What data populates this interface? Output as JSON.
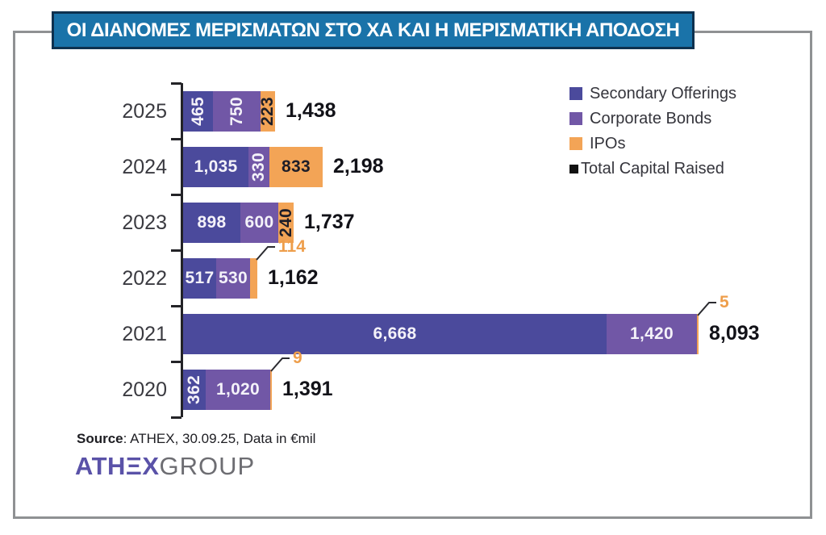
{
  "title_banner": {
    "text": "ΟΙ ΔΙΑΝΟΜΕΣ ΜΕΡΙΣΜΑΤΩΝ ΣΤΟ ΧΑ ΚΑΙ Η ΜΕΡΙΣΜΑΤΙΚΗ ΑΠΟΔΟΣΗ",
    "bg_color": "#1a73a9",
    "border_color": "#0d314f"
  },
  "legend": [
    {
      "label": "Secondary Offerings",
      "color": "#4b4a9c",
      "marker": "normal"
    },
    {
      "label": "Corporate Bonds",
      "color": "#7157a6",
      "marker": "normal"
    },
    {
      "label": "IPOs",
      "color": "#f3a456",
      "marker": "normal"
    },
    {
      "label": "Total Capital Raised",
      "color": "#111111",
      "marker": "small"
    }
  ],
  "chart_data": {
    "type": "bar",
    "orientation": "horizontal",
    "stacked": true,
    "title": "ΟΙ ΔΙΑΝΟΜΕΣ ΜΕΡΙΣΜΑΤΩΝ ΣΤΟ ΧΑ ΚΑΙ Η ΜΕΡΙΣΜΑΤΙΚΗ ΑΠΟΔΟΣΗ",
    "unit": "€mil",
    "xlim": [
      0,
      8500
    ],
    "grid": false,
    "legend_position": "top-right",
    "categories": [
      "2025",
      "2024",
      "2023",
      "2022",
      "2021",
      "2020"
    ],
    "series": [
      {
        "name": "Secondary Offerings",
        "color": "#4b4a9c",
        "values": [
          465,
          1035,
          898,
          517,
          6668,
          362
        ]
      },
      {
        "name": "Corporate Bonds",
        "color": "#7157a6",
        "values": [
          750,
          330,
          600,
          530,
          1420,
          1020
        ]
      },
      {
        "name": "IPOs",
        "color": "#f3a456",
        "values": [
          223,
          833,
          240,
          114,
          5,
          9
        ]
      }
    ],
    "totals": {
      "name": "Total Capital Raised",
      "values": [
        1438,
        2198,
        1737,
        1162,
        8093,
        1391
      ]
    },
    "rows": [
      {
        "year": "2025",
        "total_label": "1,438",
        "segments": [
          {
            "series": 0,
            "value": 465,
            "label": "465",
            "rotated": true
          },
          {
            "series": 1,
            "value": 750,
            "label": "750",
            "rotated": true
          },
          {
            "series": 2,
            "value": 223,
            "label": "223",
            "rotated": true
          }
        ]
      },
      {
        "year": "2024",
        "total_label": "2,198",
        "segments": [
          {
            "series": 0,
            "value": 1035,
            "label": "1,035"
          },
          {
            "series": 1,
            "value": 330,
            "label": "330",
            "rotated": true
          },
          {
            "series": 2,
            "value": 833,
            "label": "833"
          }
        ]
      },
      {
        "year": "2023",
        "total_label": "1,737",
        "segments": [
          {
            "series": 0,
            "value": 898,
            "label": "898"
          },
          {
            "series": 1,
            "value": 600,
            "label": "600"
          },
          {
            "series": 2,
            "value": 240,
            "label": "240",
            "rotated": true
          }
        ]
      },
      {
        "year": "2022",
        "total_label": "1,162",
        "segments": [
          {
            "series": 0,
            "value": 517,
            "label": "517"
          },
          {
            "series": 1,
            "value": 530,
            "label": "530"
          },
          {
            "series": 2,
            "value": 114,
            "label": "114",
            "callout": true
          }
        ]
      },
      {
        "year": "2021",
        "total_label": "8,093",
        "segments": [
          {
            "series": 0,
            "value": 6668,
            "label": "6,668"
          },
          {
            "series": 1,
            "value": 1420,
            "label": "1,420"
          },
          {
            "series": 2,
            "value": 5,
            "label": "5",
            "callout": true
          }
        ]
      },
      {
        "year": "2020",
        "total_label": "1,391",
        "segments": [
          {
            "series": 0,
            "value": 362,
            "label": "362",
            "rotated": true
          },
          {
            "series": 1,
            "value": 1020,
            "label": "1,020"
          },
          {
            "series": 2,
            "value": 9,
            "label": "9",
            "callout": true
          }
        ]
      }
    ],
    "label_colors": {
      "on_purple": "#f4f2f9",
      "on_orange": "#1e1e28"
    },
    "callout_text_color": "#ee9e4b"
  },
  "source": {
    "label": "Source",
    "rest": ": ATHEX, 30.09.25, Data in €mil"
  },
  "logo": {
    "athex": "ATHΞX",
    "group": "GROUP"
  }
}
